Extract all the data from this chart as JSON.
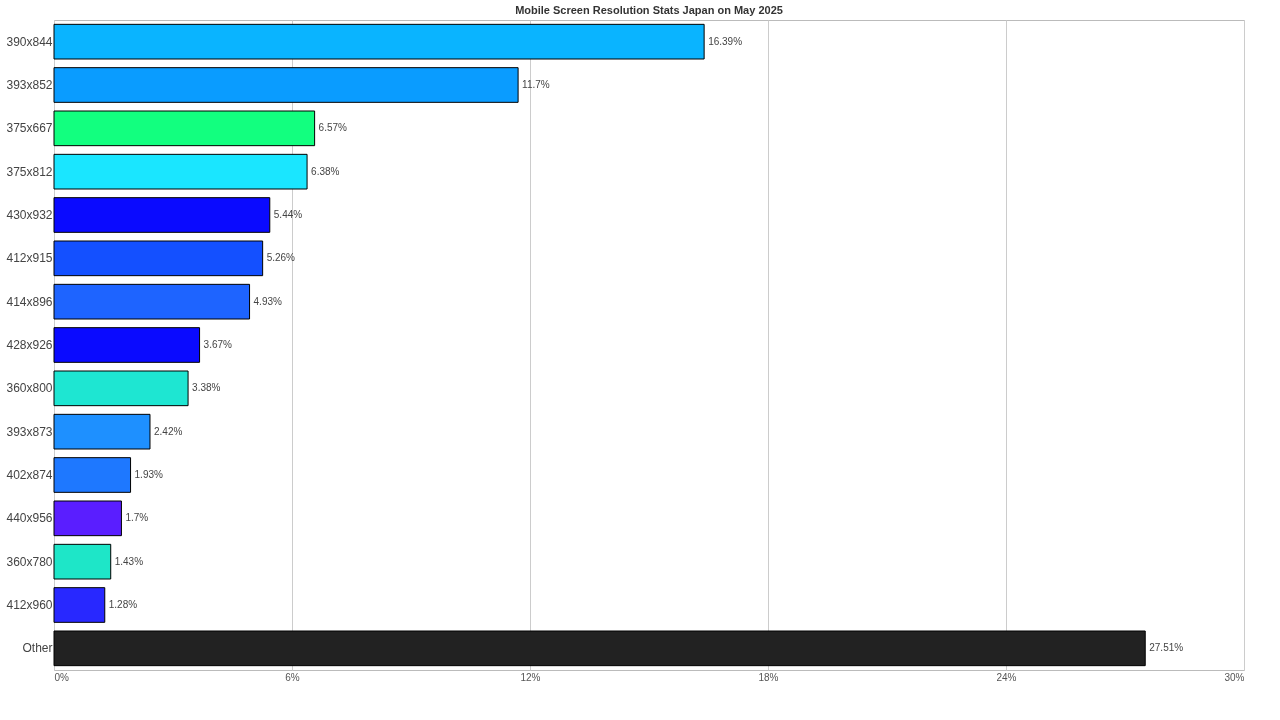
{
  "chart_data": {
    "type": "bar",
    "orientation": "horizontal",
    "subtitle": "Mobile Screen Resolution Stats Japan on May 2025",
    "categories": [
      "390x844",
      "393x852",
      "375x667",
      "375x812",
      "430x932",
      "412x915",
      "414x896",
      "428x926",
      "360x800",
      "393x873",
      "402x874",
      "440x956",
      "360x780",
      "412x960",
      "Other"
    ],
    "values": [
      16.39,
      11.7,
      6.57,
      6.38,
      5.44,
      5.26,
      4.93,
      3.67,
      3.38,
      2.42,
      1.93,
      1.7,
      1.43,
      1.28,
      27.51
    ],
    "value_labels": [
      "16.39%",
      "11.7%",
      "6.57%",
      "6.38%",
      "5.44%",
      "5.26%",
      "4.93%",
      "3.67%",
      "3.38%",
      "2.42%",
      "1.93%",
      "1.7%",
      "1.43%",
      "1.28%",
      "27.51%"
    ],
    "colors": [
      "#0ab4ff",
      "#0a9cff",
      "#12ff7f",
      "#1ae6ff",
      "#0a0aff",
      "#1450ff",
      "#1e64ff",
      "#0a0aff",
      "#1ee6d2",
      "#1e90ff",
      "#1e78ff",
      "#5a1eff",
      "#1ee6c8",
      "#2828ff",
      "#222222"
    ],
    "xlim": [
      0,
      30
    ],
    "xticks": [
      {
        "value": 0,
        "label": "0%"
      },
      {
        "value": 6,
        "label": "6%"
      },
      {
        "value": 12,
        "label": "12%"
      },
      {
        "value": 18,
        "label": "18%"
      },
      {
        "value": 24,
        "label": "24%"
      },
      {
        "value": 30,
        "label": "30%"
      }
    ],
    "grid": "x"
  }
}
